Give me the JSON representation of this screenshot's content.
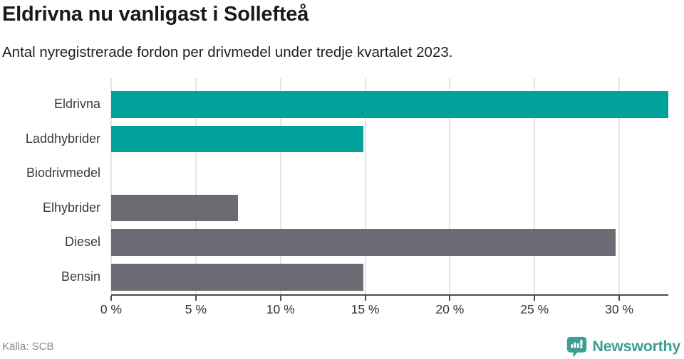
{
  "header": {
    "title": "Eldrivna nu vanligast i Sollefteå",
    "subtitle": "Antal nyregistrerade fordon per drivmedel under tredje kvartalet 2023."
  },
  "footer": {
    "source": "Källa: SCB",
    "brand": "Newsworthy"
  },
  "colors": {
    "electric_teal": "#00a29a",
    "fossil_gray": "#6c6a72",
    "logo_teal": "#3d9f94",
    "gridline": "#e4e4e4",
    "axis": "#4d4d4d",
    "title_text": "#1a1a1a",
    "label_text": "#3a3a3a",
    "source_text": "#8a8a8a"
  },
  "chart_data": {
    "type": "bar",
    "orientation": "horizontal",
    "title": "Eldrivna nu vanligast i Sollefteå",
    "subtitle": "Antal nyregistrerade fordon per drivmedel under tredje kvartalet 2023.",
    "categories": [
      "Eldrivna",
      "Laddhybrider",
      "Biodrivmedel",
      "Elhybrider",
      "Diesel",
      "Bensin"
    ],
    "values": [
      32.9,
      14.9,
      0,
      7.5,
      29.8,
      14.9
    ],
    "unit": "%",
    "bar_colors": [
      "#00a29a",
      "#00a29a",
      "#6c6a72",
      "#6c6a72",
      "#6c6a72",
      "#6c6a72"
    ],
    "xlabel": "",
    "ylabel": "",
    "xlim": [
      0,
      32.9
    ],
    "xticks": [
      0,
      5,
      10,
      15,
      20,
      25,
      30
    ],
    "xtick_suffix": " %",
    "grid": true,
    "legend": false,
    "source": "Källa: SCB"
  }
}
